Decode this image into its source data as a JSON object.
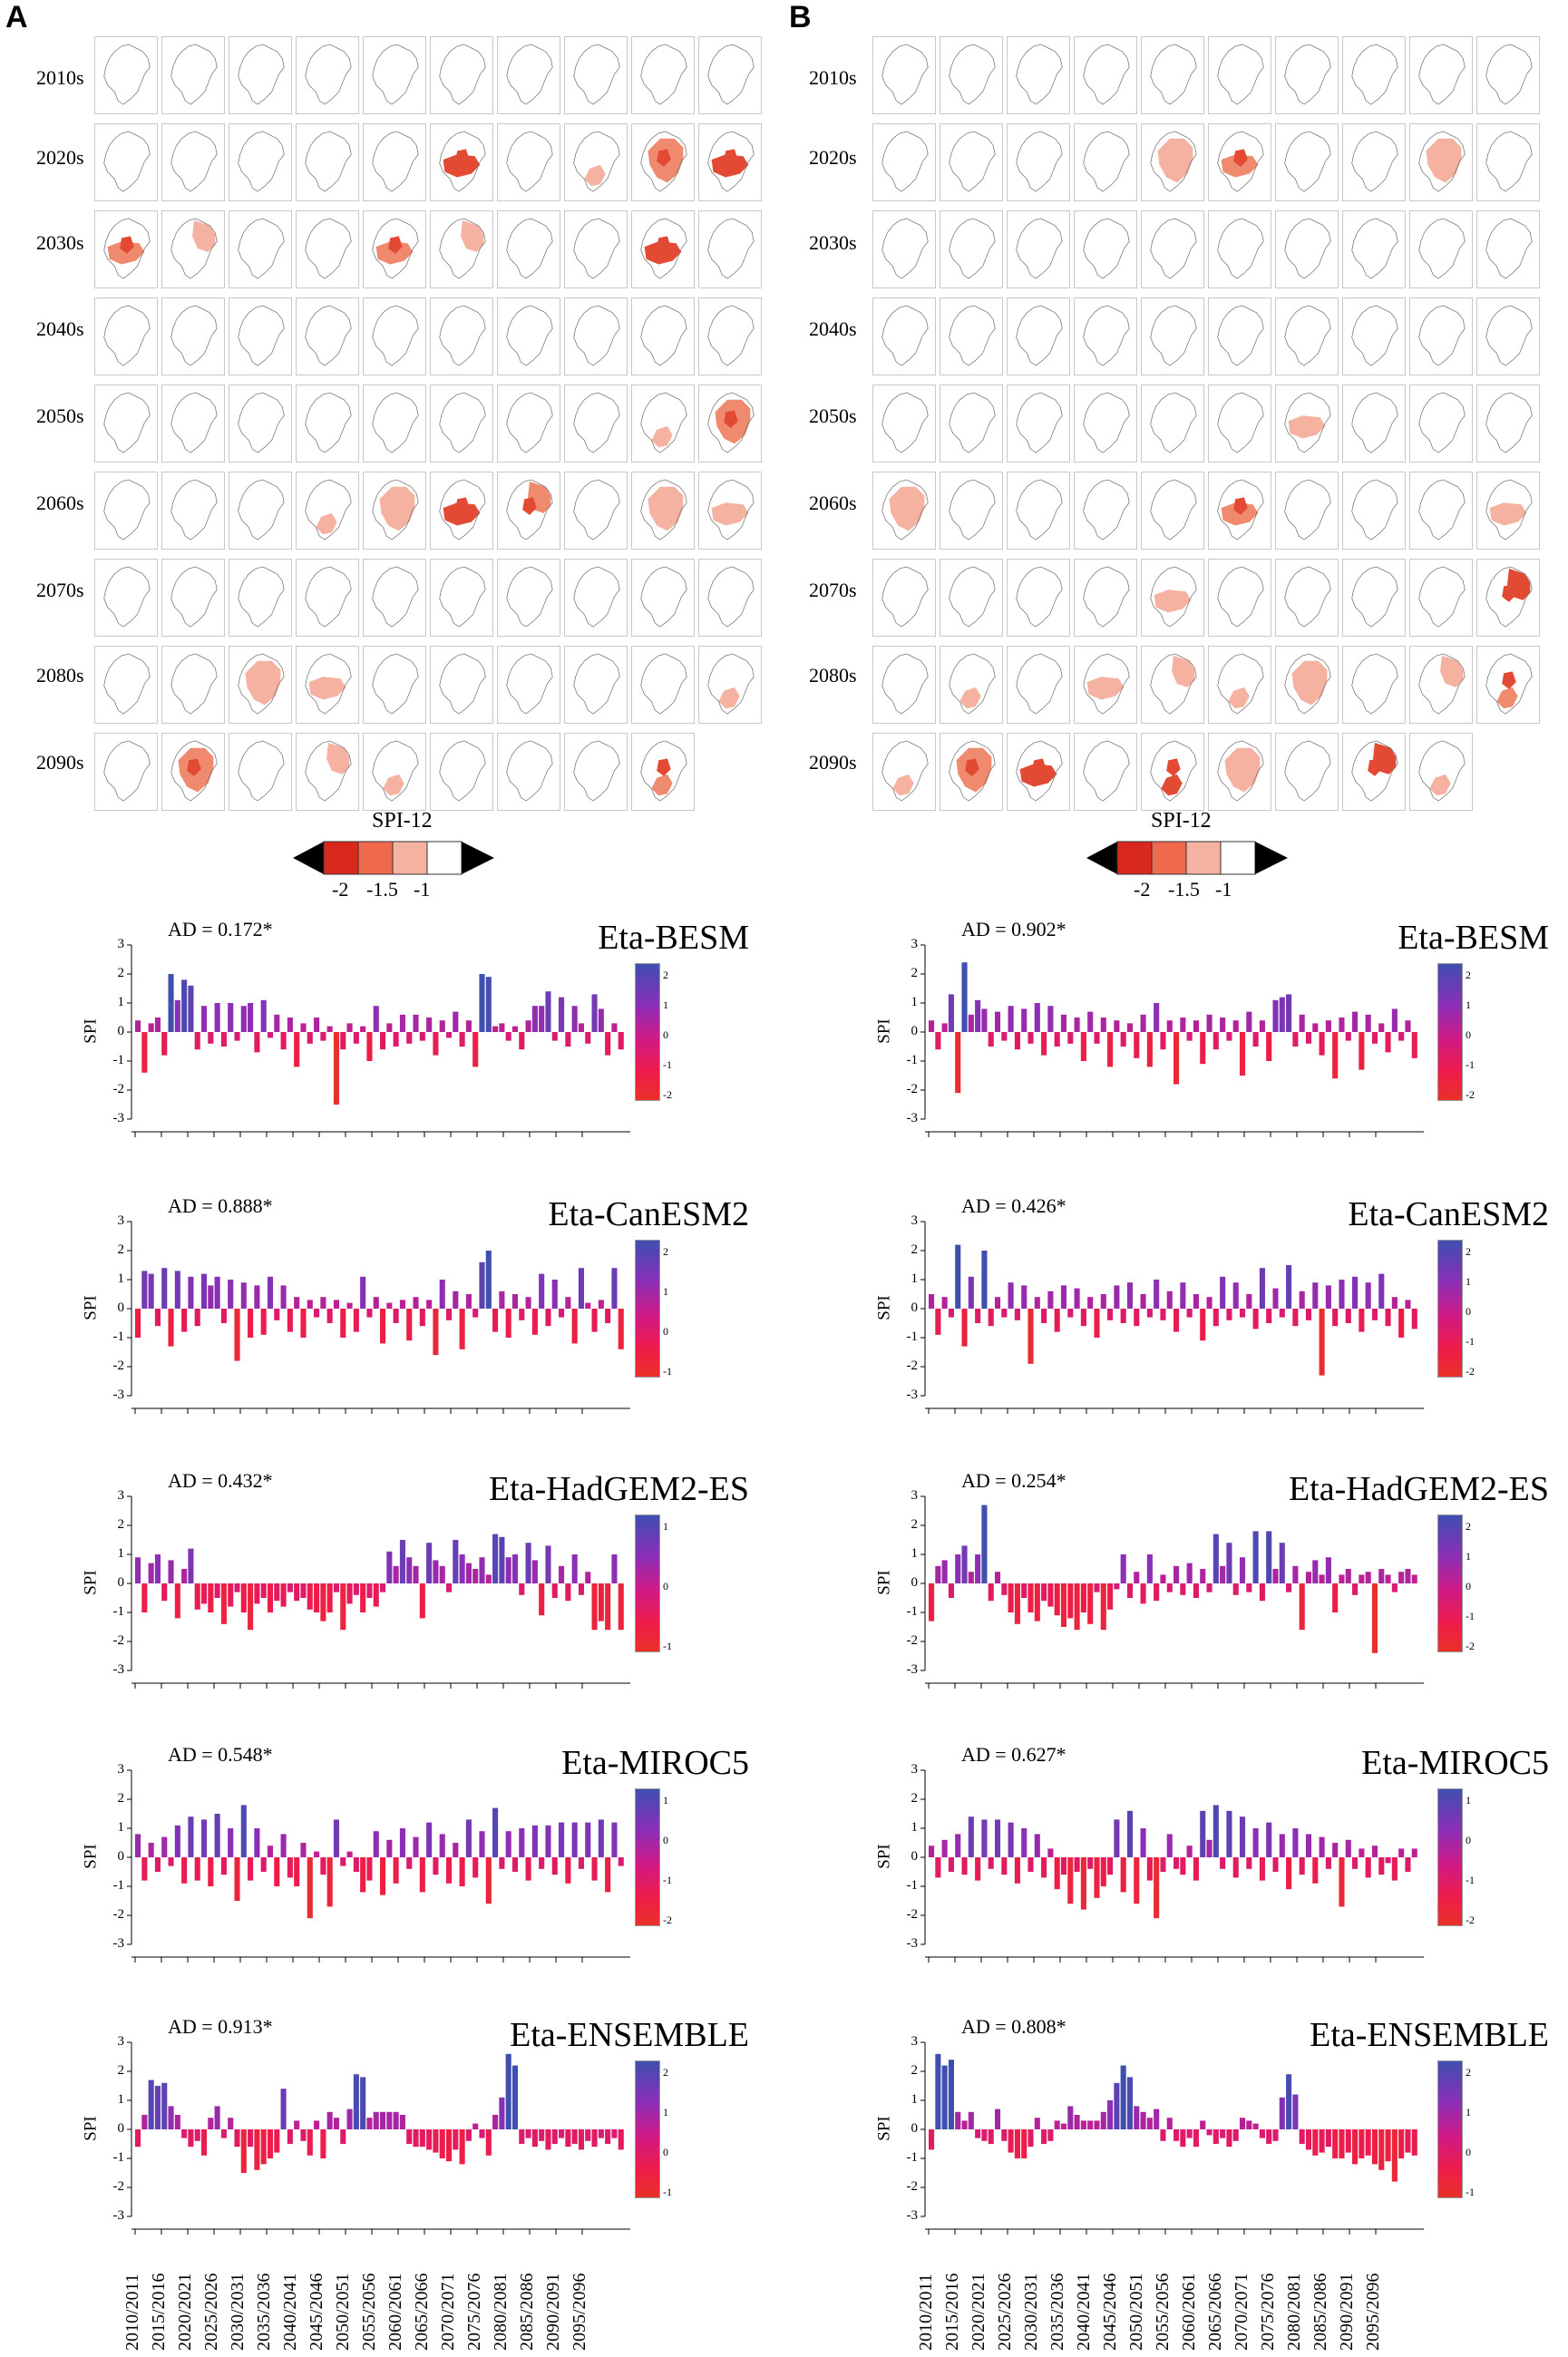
{
  "panels": [
    {
      "letter": "A",
      "decades": [
        "2010s",
        "2020s",
        "2030s",
        "2040s",
        "2050s",
        "2060s",
        "2070s",
        "2080s",
        "2090s"
      ]
    },
    {
      "letter": "B",
      "decades": [
        "2010s",
        "2020s",
        "2030s",
        "2040s",
        "2050s",
        "2060s",
        "2070s",
        "2080s",
        "2090s"
      ]
    }
  ],
  "legend": {
    "title": "SPI-12",
    "labels": [
      "-2",
      "-1.5",
      "-1"
    ],
    "colors": [
      "#d9281e",
      "#ef6a4c",
      "#f6b2a0",
      "#ffffff"
    ]
  },
  "chart_data": [
    {
      "type": "bar",
      "panel": "A",
      "title": "Eta-BESM",
      "annotation": "AD = 0.172*",
      "ylabel": "SPI",
      "ylim": [
        -3,
        3
      ],
      "yticks": [
        "3",
        "2",
        "1",
        "0",
        "-1",
        "-2",
        "-3"
      ],
      "colorbar_ticks": [
        "2",
        "1",
        "0",
        "-1",
        "-2"
      ],
      "values": [
        0.4,
        -1.4,
        0.3,
        0.5,
        -0.8,
        2.0,
        1.1,
        1.8,
        1.6,
        -0.6,
        0.9,
        -0.4,
        1.0,
        -0.5,
        1.0,
        -0.3,
        0.9,
        1.0,
        -0.7,
        1.1,
        -0.2,
        0.6,
        -0.6,
        0.5,
        -1.2,
        0.3,
        -0.4,
        0.5,
        -0.3,
        0.2,
        -2.5,
        -0.6,
        0.3,
        -0.4,
        0.2,
        -1.0,
        0.9,
        -0.6,
        0.3,
        -0.5,
        0.6,
        -0.4,
        0.6,
        -0.3,
        0.5,
        -0.8,
        0.4,
        -0.2,
        0.7,
        -0.5,
        0.4,
        -1.2,
        2.0,
        1.9,
        0.2,
        0.3,
        -0.3,
        0.2,
        -0.6,
        0.4,
        0.9,
        0.9,
        1.4,
        -0.3,
        1.2,
        -0.5,
        0.9,
        0.3,
        -0.4,
        1.3,
        0.8,
        -0.8,
        0.3,
        -0.6
      ]
    },
    {
      "type": "bar",
      "panel": "A",
      "title": "Eta-CanESM2",
      "annotation": "AD = 0.888*",
      "ylabel": "SPI",
      "ylim": [
        -3,
        3
      ],
      "yticks": [
        "3",
        "2",
        "1",
        "0",
        "-1",
        "-2",
        "-3"
      ],
      "colorbar_ticks": [
        "2",
        "1",
        "0",
        "-1"
      ],
      "values": [
        -1.0,
        1.3,
        1.2,
        -0.6,
        1.4,
        -1.3,
        1.3,
        -0.8,
        1.1,
        -0.6,
        1.2,
        0.8,
        1.1,
        -0.5,
        1.0,
        -1.8,
        0.9,
        -1.0,
        0.8,
        -0.9,
        1.1,
        -0.4,
        0.8,
        -0.8,
        0.4,
        -1.0,
        0.3,
        -0.3,
        0.4,
        -0.5,
        0.3,
        -1.0,
        0.2,
        -0.8,
        1.1,
        -0.3,
        0.4,
        -1.2,
        0.2,
        -0.5,
        0.3,
        -1.1,
        0.4,
        -0.6,
        0.3,
        -1.6,
        1.0,
        -0.4,
        0.6,
        -1.4,
        0.5,
        -0.3,
        1.6,
        2.0,
        -0.8,
        0.6,
        -1.0,
        0.5,
        -0.4,
        0.4,
        -0.9,
        1.2,
        -0.6,
        1.0,
        -0.3,
        0.4,
        -1.2,
        1.4,
        0.2,
        -0.8,
        0.3,
        -0.5,
        1.4,
        -1.4
      ]
    },
    {
      "type": "bar",
      "panel": "A",
      "title": "Eta-HadGEM2-ES",
      "annotation": "AD = 0.432*",
      "ylabel": "SPI",
      "ylim": [
        -3,
        3
      ],
      "yticks": [
        "3",
        "2",
        "1",
        "0",
        "-1",
        "-2",
        "-3"
      ],
      "colorbar_ticks": [
        "1",
        "0",
        "-1"
      ],
      "values": [
        0.9,
        -1.0,
        0.7,
        1.0,
        -0.6,
        0.8,
        -1.2,
        0.5,
        1.2,
        -0.9,
        -0.7,
        -1.0,
        -0.5,
        -1.4,
        -0.8,
        -0.3,
        -1.0,
        -1.6,
        -0.7,
        -0.5,
        -1.0,
        -0.6,
        -0.8,
        -0.3,
        -0.6,
        -0.5,
        -0.9,
        -1.0,
        -1.3,
        -1.0,
        -0.3,
        -1.6,
        -0.7,
        -0.4,
        -1.0,
        -0.5,
        -0.8,
        -0.3,
        1.1,
        0.6,
        1.5,
        0.9,
        0.6,
        -1.2,
        1.4,
        0.8,
        0.6,
        -0.3,
        1.5,
        1.0,
        0.7,
        0.5,
        0.9,
        0.3,
        1.7,
        1.6,
        0.9,
        1.0,
        -0.4,
        1.4,
        0.8,
        -1.1,
        1.3,
        -0.5,
        0.6,
        -0.6,
        1.0,
        -0.4,
        0.4,
        -1.6,
        -1.3,
        -1.6,
        1.0,
        -1.6
      ]
    },
    {
      "type": "bar",
      "panel": "A",
      "title": "Eta-MIROC5",
      "annotation": "AD = 0.548*",
      "ylabel": "SPI",
      "ylim": [
        -3,
        3
      ],
      "yticks": [
        "3",
        "2",
        "1",
        "0",
        "-1",
        "-2",
        "-3"
      ],
      "colorbar_ticks": [
        "1",
        "0",
        "-1",
        "-2"
      ],
      "values": [
        0.8,
        -0.8,
        0.5,
        -0.5,
        0.7,
        -0.3,
        1.1,
        -0.9,
        1.4,
        -0.8,
        1.3,
        -1.0,
        1.5,
        -0.6,
        1.0,
        -1.5,
        1.8,
        -0.8,
        1.0,
        -0.5,
        0.4,
        -1.0,
        0.8,
        -0.7,
        -1.0,
        0.5,
        -2.1,
        0.2,
        -0.6,
        -1.7,
        1.3,
        -0.3,
        0.2,
        -0.5,
        -1.2,
        -0.8,
        0.9,
        -1.3,
        0.6,
        -0.9,
        1.0,
        -0.4,
        0.7,
        -1.2,
        1.2,
        -0.6,
        0.8,
        -0.9,
        0.5,
        -1.0,
        1.3,
        -0.7,
        0.9,
        -1.6,
        1.7,
        -0.4,
        0.9,
        -0.5,
        1.0,
        -0.8,
        1.1,
        -0.4,
        1.1,
        -0.6,
        1.2,
        -0.9,
        1.2,
        -0.4,
        1.2,
        -0.8,
        1.3,
        -1.2,
        1.2,
        -0.3
      ]
    },
    {
      "type": "bar",
      "panel": "A",
      "title": "Eta-ENSEMBLE",
      "annotation": "AD = 0.913*",
      "ylabel": "SPI",
      "ylim": [
        -3,
        3
      ],
      "yticks": [
        "3",
        "2",
        "1",
        "0",
        "-1",
        "-2",
        "-3"
      ],
      "colorbar_ticks": [
        "2",
        "1",
        "0",
        "-1"
      ],
      "values": [
        -0.6,
        0.5,
        1.7,
        1.5,
        1.6,
        0.8,
        0.5,
        -0.3,
        -0.6,
        -0.4,
        -0.9,
        0.4,
        0.8,
        -0.3,
        0.4,
        -0.6,
        -1.5,
        -0.6,
        -1.4,
        -1.2,
        -1.0,
        -0.8,
        1.4,
        -0.5,
        0.3,
        -0.4,
        -0.9,
        0.3,
        -1.0,
        0.6,
        0.4,
        -0.5,
        0.7,
        1.9,
        1.8,
        0.4,
        0.6,
        0.6,
        0.6,
        0.6,
        0.5,
        -0.5,
        -0.6,
        -0.6,
        -0.7,
        -0.8,
        -1.0,
        -1.1,
        -0.7,
        -1.2,
        -0.4,
        0.2,
        -0.3,
        -0.9,
        0.5,
        1.1,
        2.6,
        2.2,
        -0.5,
        -0.3,
        -0.6,
        -0.4,
        -0.7,
        -0.5,
        -0.3,
        -0.6,
        -0.5,
        -0.7,
        -0.4,
        -0.6,
        -0.3,
        -0.5,
        -0.3,
        -0.7
      ]
    },
    {
      "type": "bar",
      "panel": "B",
      "title": "Eta-BESM",
      "annotation": "AD = 0.902*",
      "ylabel": "SPI",
      "ylim": [
        -3,
        3
      ],
      "yticks": [
        "3",
        "2",
        "1",
        "0",
        "-1",
        "-2",
        "-3"
      ],
      "colorbar_ticks": [
        "2",
        "1",
        "0",
        "-1",
        "-2"
      ],
      "values": [
        0.4,
        -0.6,
        0.3,
        1.3,
        -2.1,
        2.4,
        0.6,
        1.1,
        0.8,
        -0.5,
        0.7,
        -0.3,
        0.9,
        -0.6,
        0.8,
        -0.4,
        1.0,
        -0.8,
        0.9,
        -0.5,
        0.6,
        -0.4,
        0.5,
        -1.0,
        0.7,
        -0.4,
        0.5,
        -1.2,
        0.4,
        -0.5,
        0.3,
        -0.9,
        0.6,
        -1.2,
        1.0,
        -0.6,
        0.4,
        -1.8,
        0.5,
        -0.3,
        0.4,
        -1.1,
        0.6,
        -0.6,
        0.5,
        -0.3,
        0.4,
        -1.5,
        0.7,
        -0.5,
        0.4,
        -1.0,
        1.1,
        1.2,
        1.3,
        -0.5,
        0.6,
        -0.4,
        0.3,
        -0.8,
        0.4,
        -1.6,
        0.5,
        -0.3,
        0.7,
        -1.3,
        0.6,
        -0.4,
        0.3,
        -0.7,
        0.8,
        -0.3,
        0.4,
        -0.9
      ]
    },
    {
      "type": "bar",
      "panel": "B",
      "title": "Eta-CanESM2",
      "annotation": "AD = 0.426*",
      "ylabel": "SPI",
      "ylim": [
        -3,
        3
      ],
      "yticks": [
        "3",
        "2",
        "1",
        "0",
        "-1",
        "-2",
        "-3"
      ],
      "colorbar_ticks": [
        "2",
        "1",
        "0",
        "-1",
        "-2"
      ],
      "values": [
        0.5,
        -0.9,
        0.4,
        -0.3,
        2.2,
        -1.3,
        1.1,
        -0.5,
        2.0,
        -0.6,
        0.4,
        -0.3,
        0.9,
        -0.4,
        0.8,
        -1.9,
        0.4,
        -0.5,
        0.6,
        -0.8,
        0.8,
        -0.3,
        0.7,
        -0.6,
        0.4,
        -1.0,
        0.5,
        -0.4,
        0.8,
        -0.5,
        0.9,
        -0.6,
        0.5,
        -0.3,
        1.0,
        -0.4,
        0.6,
        -0.8,
        0.9,
        -0.3,
        0.5,
        -1.1,
        0.4,
        -0.6,
        1.1,
        -0.4,
        0.9,
        -0.3,
        0.5,
        -0.7,
        1.4,
        -0.5,
        0.7,
        -0.3,
        1.5,
        -0.6,
        0.6,
        -0.4,
        0.9,
        -2.3,
        0.8,
        -0.6,
        1.0,
        -0.5,
        1.1,
        -0.8,
        0.9,
        -0.4,
        1.2,
        -0.6,
        0.4,
        -1.0,
        0.3,
        -0.7
      ]
    },
    {
      "type": "bar",
      "panel": "B",
      "title": "Eta-HadGEM2-ES",
      "annotation": "AD = 0.254*",
      "ylabel": "SPI",
      "ylim": [
        -3,
        3
      ],
      "yticks": [
        "3",
        "2",
        "1",
        "0",
        "-1",
        "-2",
        "-3"
      ],
      "colorbar_ticks": [
        "2",
        "1",
        "0",
        "-1",
        "-2"
      ],
      "values": [
        -1.3,
        0.6,
        0.8,
        -0.5,
        1.0,
        1.3,
        0.4,
        1.0,
        2.7,
        -0.6,
        0.4,
        -0.4,
        -1.0,
        -1.4,
        -0.5,
        -1.0,
        -1.3,
        -0.6,
        -0.8,
        -1.1,
        -1.5,
        -1.2,
        -1.6,
        -1.0,
        -1.4,
        -0.3,
        -1.6,
        -0.9,
        -0.2,
        1.0,
        -0.5,
        0.4,
        -0.7,
        1.0,
        -0.6,
        0.3,
        -0.3,
        0.6,
        -0.4,
        0.7,
        -0.5,
        0.5,
        -0.3,
        1.7,
        0.6,
        1.4,
        -0.4,
        0.9,
        -0.3,
        1.8,
        -0.6,
        1.8,
        0.5,
        1.4,
        -0.3,
        0.6,
        -1.6,
        0.4,
        0.8,
        0.3,
        0.9,
        -1.0,
        0.3,
        0.5,
        -0.4,
        0.3,
        0.4,
        -2.4,
        0.5,
        0.3,
        -0.3,
        0.4,
        0.5,
        0.3
      ]
    },
    {
      "type": "bar",
      "panel": "B",
      "title": "Eta-MIROC5",
      "annotation": "AD = 0.627*",
      "ylabel": "SPI",
      "ylim": [
        -3,
        3
      ],
      "yticks": [
        "3",
        "2",
        "1",
        "0",
        "-1",
        "-2",
        "-3"
      ],
      "colorbar_ticks": [
        "1",
        "0",
        "-1",
        "-2"
      ],
      "values": [
        0.4,
        -0.7,
        0.6,
        -0.5,
        0.8,
        -0.6,
        1.4,
        -0.8,
        1.3,
        -0.4,
        1.3,
        -0.6,
        1.2,
        -0.9,
        1.0,
        -0.5,
        0.8,
        -0.7,
        0.3,
        -1.1,
        -0.6,
        -1.6,
        -0.5,
        -1.8,
        -0.4,
        -1.4,
        -1.0,
        -0.6,
        1.3,
        -1.2,
        1.6,
        -1.6,
        1.0,
        -0.8,
        -2.1,
        -0.5,
        0.8,
        -0.4,
        -0.6,
        0.4,
        -0.8,
        1.6,
        0.6,
        1.8,
        -0.4,
        1.6,
        -0.7,
        1.4,
        -0.4,
        1.0,
        -0.8,
        1.2,
        -0.5,
        0.8,
        -1.1,
        1.0,
        -0.6,
        0.8,
        -0.9,
        0.7,
        -0.4,
        0.5,
        -1.7,
        0.6,
        -0.4,
        0.3,
        -0.7,
        0.4,
        -0.6,
        -0.2,
        -0.8,
        0.3,
        -0.5,
        0.3
      ]
    },
    {
      "type": "bar",
      "panel": "B",
      "title": "Eta-ENSEMBLE",
      "annotation": "AD = 0.808*",
      "ylabel": "SPI",
      "ylim": [
        -3,
        3
      ],
      "yticks": [
        "3",
        "2",
        "1",
        "0",
        "-1",
        "-2",
        "-3"
      ],
      "colorbar_ticks": [
        "2",
        "1",
        "0",
        "-1"
      ],
      "values": [
        -0.7,
        2.6,
        2.2,
        2.4,
        0.6,
        0.3,
        0.6,
        -0.3,
        -0.4,
        -0.5,
        0.7,
        -0.4,
        -0.8,
        -1.0,
        -1.0,
        -0.6,
        0.4,
        -0.5,
        -0.4,
        0.3,
        0.2,
        0.8,
        0.5,
        0.3,
        0.3,
        0.3,
        0.6,
        1.0,
        1.6,
        2.2,
        1.8,
        0.8,
        0.6,
        0.4,
        0.7,
        -0.4,
        0.4,
        -0.4,
        -0.6,
        -0.3,
        -0.6,
        0.3,
        -0.2,
        -0.5,
        -0.3,
        -0.6,
        -0.4,
        0.4,
        0.3,
        0.2,
        -0.3,
        -0.5,
        -0.4,
        1.1,
        1.9,
        1.2,
        -0.5,
        -0.7,
        -0.9,
        -0.8,
        -0.6,
        -1.0,
        -1.0,
        -0.8,
        -1.2,
        -1.0,
        -0.9,
        -1.2,
        -1.4,
        -1.1,
        -1.8,
        -1.0,
        -0.8,
        -0.9
      ]
    }
  ],
  "x_tick_labels": [
    "2010/2011",
    "2015/2016",
    "2020/2021",
    "2025/2026",
    "2030/2031",
    "2035/2036",
    "2040/2041",
    "2045/2046",
    "2050/2051",
    "2055/2056",
    "2060/2061",
    "2065/2066",
    "2070/2071",
    "2075/2076",
    "2080/2081",
    "2085/2086",
    "2090/2091",
    "2095/2096"
  ],
  "map_fill": {
    "A": [
      [
        0,
        0,
        0,
        0,
        0,
        0,
        0,
        0,
        0,
        0
      ],
      [
        0,
        0,
        0,
        0,
        0,
        3,
        0,
        1,
        2,
        3
      ],
      [
        2,
        1,
        0,
        0,
        2,
        1,
        0,
        0,
        3,
        0
      ],
      [
        0,
        0,
        0,
        0,
        0,
        0,
        0,
        0,
        0,
        0
      ],
      [
        0,
        0,
        0,
        0,
        0,
        0,
        0,
        0,
        1,
        2
      ],
      [
        0,
        0,
        0,
        1,
        1,
        3,
        2,
        0,
        1,
        1
      ],
      [
        0,
        0,
        0,
        0,
        0,
        0,
        0,
        0,
        0,
        0
      ],
      [
        0,
        0,
        1,
        1,
        0,
        0,
        0,
        0,
        0,
        1
      ],
      [
        0,
        2,
        0,
        1,
        1,
        0,
        0,
        0,
        2,
        -1
      ]
    ],
    "B": [
      [
        0,
        0,
        0,
        0,
        0,
        0,
        0,
        0,
        0,
        0
      ],
      [
        0,
        0,
        0,
        0,
        1,
        2,
        0,
        0,
        1,
        0
      ],
      [
        0,
        0,
        0,
        0,
        0,
        0,
        0,
        0,
        0,
        0
      ],
      [
        0,
        0,
        0,
        0,
        0,
        0,
        0,
        0,
        0,
        0
      ],
      [
        0,
        0,
        0,
        0,
        0,
        0,
        1,
        0,
        0,
        0
      ],
      [
        1,
        0,
        0,
        0,
        0,
        2,
        0,
        0,
        0,
        1
      ],
      [
        0,
        0,
        0,
        0,
        1,
        0,
        0,
        0,
        0,
        3
      ],
      [
        0,
        1,
        0,
        1,
        1,
        1,
        1,
        0,
        1,
        2
      ],
      [
        1,
        2,
        3,
        0,
        3,
        1,
        0,
        3,
        1,
        -1
      ]
    ]
  }
}
